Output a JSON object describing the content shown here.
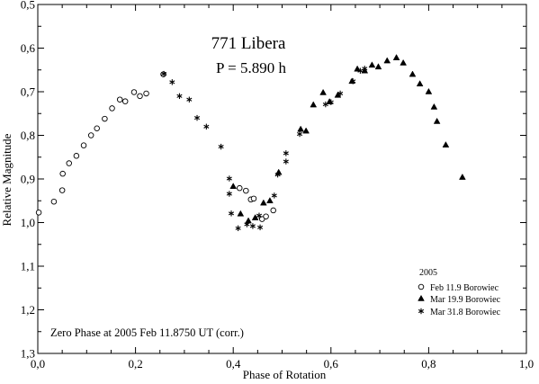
{
  "chart_data": {
    "type": "scatter",
    "title": "771 Libera",
    "subtitle": "P = 5.890 h",
    "xlabel": "Phase of Rotation",
    "ylabel": "Relative Magnitude",
    "xlim": [
      0.0,
      1.0
    ],
    "ylim": [
      0.5,
      1.3
    ],
    "y_inverted": true,
    "grid": false,
    "x_ticks": [
      "0,0",
      "0,2",
      "0,4",
      "0,6",
      "0,8",
      "1,0"
    ],
    "y_ticks": [
      "0,5",
      "0,6",
      "0,7",
      "0,8",
      "0,9",
      "1,0",
      "1,1",
      "1,2",
      "1,3"
    ],
    "x_tick_values": [
      0.0,
      0.2,
      0.4,
      0.6,
      0.8,
      1.0
    ],
    "y_tick_values": [
      0.5,
      0.6,
      0.7,
      0.8,
      0.9,
      1.0,
      1.1,
      1.2,
      1.3
    ],
    "legend": {
      "title": "2005",
      "position": "bottom-right"
    },
    "annotation": "Zero Phase at 2005 Feb 11.8750 UT (corr.)",
    "series": [
      {
        "name": "Feb 11.9 Borowiec",
        "marker": "circle",
        "x": [
          0.002,
          0.033,
          0.05,
          0.051,
          0.064,
          0.079,
          0.094,
          0.109,
          0.121,
          0.137,
          0.152,
          0.168,
          0.179,
          0.197,
          0.209,
          0.222,
          0.257,
          0.426,
          0.413,
          0.436,
          0.442,
          0.459,
          0.467,
          0.482
        ],
        "y": [
          0.977,
          0.952,
          0.926,
          0.888,
          0.864,
          0.847,
          0.823,
          0.8,
          0.784,
          0.762,
          0.738,
          0.718,
          0.722,
          0.701,
          0.71,
          0.704,
          0.66,
          0.927,
          0.921,
          0.947,
          0.945,
          0.992,
          0.986,
          0.972
        ]
      },
      {
        "name": "Mar 19.9 Borowiec",
        "marker": "triangle",
        "x": [
          0.4,
          0.415,
          0.431,
          0.445,
          0.462,
          0.475,
          0.493,
          0.538,
          0.549,
          0.564,
          0.584,
          0.597,
          0.614,
          0.643,
          0.654,
          0.669,
          0.684,
          0.697,
          0.715,
          0.734,
          0.748,
          0.767,
          0.782,
          0.8,
          0.811,
          0.817,
          0.835,
          0.869
        ],
        "y": [
          0.917,
          0.98,
          0.996,
          0.989,
          0.955,
          0.95,
          0.885,
          0.786,
          0.79,
          0.73,
          0.702,
          0.723,
          0.708,
          0.676,
          0.648,
          0.652,
          0.639,
          0.643,
          0.629,
          0.622,
          0.634,
          0.66,
          0.682,
          0.7,
          0.735,
          0.768,
          0.822,
          0.896
        ]
      },
      {
        "name": "Mar 31.8 Borowiec",
        "marker": "asterisk",
        "x": [
          0.258,
          0.275,
          0.29,
          0.31,
          0.326,
          0.345,
          0.375,
          0.392,
          0.392,
          0.396,
          0.41,
          0.428,
          0.44,
          0.455,
          0.453,
          0.484,
          0.491,
          0.508,
          0.508,
          0.536,
          0.589,
          0.6,
          0.619,
          0.645,
          0.66,
          0.669
        ],
        "y": [
          0.659,
          0.678,
          0.71,
          0.718,
          0.76,
          0.78,
          0.826,
          0.899,
          0.934,
          0.979,
          1.013,
          1.004,
          1.008,
          1.011,
          0.984,
          0.938,
          0.89,
          0.841,
          0.86,
          0.797,
          0.729,
          0.724,
          0.704,
          0.676,
          0.652,
          0.647
        ]
      }
    ]
  }
}
